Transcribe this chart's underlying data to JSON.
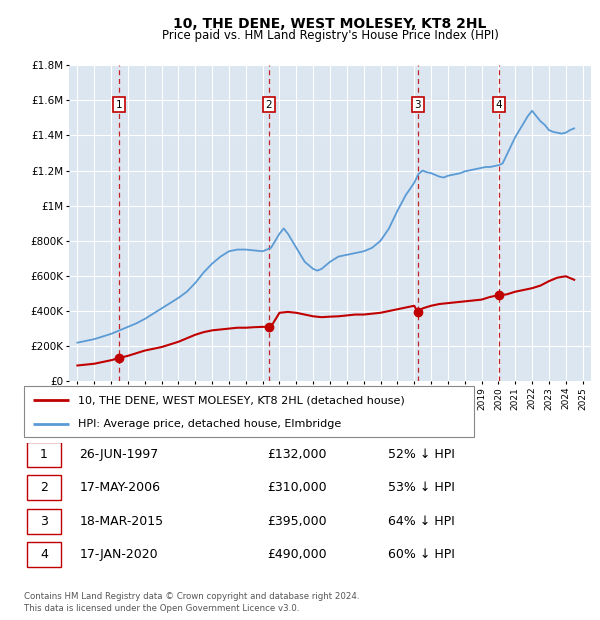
{
  "title": "10, THE DENE, WEST MOLESEY, KT8 2HL",
  "subtitle": "Price paid vs. HM Land Registry's House Price Index (HPI)",
  "legend_line1": "10, THE DENE, WEST MOLESEY, KT8 2HL (detached house)",
  "legend_line2": "HPI: Average price, detached house, Elmbridge",
  "footnote1": "Contains HM Land Registry data © Crown copyright and database right 2024.",
  "footnote2": "This data is licensed under the Open Government Licence v3.0.",
  "sales": [
    {
      "num": 1,
      "date": "26-JUN-1997",
      "price": 132000,
      "pct": "52% ↓ HPI",
      "x_year": 1997.48
    },
    {
      "num": 2,
      "date": "17-MAY-2006",
      "price": 310000,
      "pct": "53% ↓ HPI",
      "x_year": 2006.37
    },
    {
      "num": 3,
      "date": "18-MAR-2015",
      "price": 395000,
      "pct": "64% ↓ HPI",
      "x_year": 2015.21
    },
    {
      "num": 4,
      "date": "17-JAN-2020",
      "price": 490000,
      "pct": "60% ↓ HPI",
      "x_year": 2020.04
    }
  ],
  "hpi_color": "#5b9bd5",
  "price_color": "#c00000",
  "dashed_color": "#c00000",
  "bg_color": "#dce6f1",
  "grid_color": "#ffffff",
  "ylim": [
    0,
    1800000
  ],
  "xlim": [
    1994.5,
    2025.5
  ],
  "yticks": [
    0,
    200000,
    400000,
    600000,
    800000,
    1000000,
    1200000,
    1400000,
    1600000,
    1800000
  ],
  "ytick_labels": [
    "£0",
    "£200K",
    "£400K",
    "£600K",
    "£800K",
    "£1M",
    "£1.2M",
    "£1.4M",
    "£1.6M",
    "£1.8M"
  ],
  "xticks": [
    1995,
    1996,
    1997,
    1998,
    1999,
    2000,
    2001,
    2002,
    2003,
    2004,
    2005,
    2006,
    2007,
    2008,
    2009,
    2010,
    2011,
    2012,
    2013,
    2014,
    2015,
    2016,
    2017,
    2018,
    2019,
    2020,
    2021,
    2022,
    2023,
    2024,
    2025
  ],
  "hpi_x": [
    1995.0,
    1995.5,
    1996.0,
    1996.5,
    1997.0,
    1997.5,
    1998.0,
    1998.5,
    1999.0,
    1999.5,
    2000.0,
    2000.5,
    2001.0,
    2001.5,
    2002.0,
    2002.5,
    2003.0,
    2003.5,
    2004.0,
    2004.5,
    2005.0,
    2005.5,
    2006.0,
    2006.5,
    2007.0,
    2007.25,
    2007.5,
    2007.75,
    2008.0,
    2008.25,
    2008.5,
    2008.75,
    2009.0,
    2009.25,
    2009.5,
    2009.75,
    2010.0,
    2010.5,
    2011.0,
    2011.5,
    2012.0,
    2012.5,
    2013.0,
    2013.5,
    2014.0,
    2014.5,
    2015.0,
    2015.25,
    2015.5,
    2015.75,
    2016.0,
    2016.25,
    2016.5,
    2016.75,
    2017.0,
    2017.25,
    2017.5,
    2017.75,
    2018.0,
    2018.25,
    2018.5,
    2018.75,
    2019.0,
    2019.25,
    2019.5,
    2019.75,
    2020.0,
    2020.25,
    2020.5,
    2020.75,
    2021.0,
    2021.25,
    2021.5,
    2021.75,
    2022.0,
    2022.25,
    2022.5,
    2022.75,
    2023.0,
    2023.25,
    2023.5,
    2023.75,
    2024.0,
    2024.25,
    2024.5
  ],
  "hpi_y": [
    220000,
    230000,
    240000,
    255000,
    270000,
    290000,
    310000,
    330000,
    355000,
    385000,
    415000,
    445000,
    475000,
    510000,
    560000,
    620000,
    670000,
    710000,
    740000,
    750000,
    750000,
    745000,
    740000,
    760000,
    840000,
    870000,
    840000,
    800000,
    760000,
    720000,
    680000,
    660000,
    640000,
    630000,
    640000,
    660000,
    680000,
    710000,
    720000,
    730000,
    740000,
    760000,
    800000,
    870000,
    970000,
    1060000,
    1130000,
    1180000,
    1200000,
    1190000,
    1185000,
    1175000,
    1165000,
    1160000,
    1170000,
    1175000,
    1180000,
    1185000,
    1195000,
    1200000,
    1205000,
    1210000,
    1215000,
    1220000,
    1220000,
    1225000,
    1230000,
    1240000,
    1290000,
    1340000,
    1390000,
    1430000,
    1470000,
    1510000,
    1540000,
    1510000,
    1480000,
    1460000,
    1430000,
    1420000,
    1415000,
    1410000,
    1415000,
    1430000,
    1440000
  ],
  "price_x": [
    1995.0,
    1995.5,
    1996.0,
    1996.5,
    1997.0,
    1997.48,
    1997.5,
    1998.0,
    1998.5,
    1999.0,
    1999.5,
    2000.0,
    2000.5,
    2001.0,
    2001.5,
    2002.0,
    2002.5,
    2003.0,
    2003.5,
    2004.0,
    2004.5,
    2005.0,
    2005.5,
    2006.0,
    2006.37,
    2006.5,
    2007.0,
    2007.5,
    2008.0,
    2008.5,
    2009.0,
    2009.5,
    2010.0,
    2010.5,
    2011.0,
    2011.5,
    2012.0,
    2012.5,
    2013.0,
    2013.5,
    2014.0,
    2014.5,
    2015.0,
    2015.21,
    2015.5,
    2016.0,
    2016.5,
    2017.0,
    2017.5,
    2018.0,
    2018.5,
    2019.0,
    2019.5,
    2020.0,
    2020.04,
    2020.5,
    2021.0,
    2021.5,
    2022.0,
    2022.5,
    2023.0,
    2023.5,
    2024.0,
    2024.5
  ],
  "price_y": [
    90000,
    95000,
    100000,
    110000,
    120000,
    132000,
    133000,
    145000,
    160000,
    175000,
    185000,
    195000,
    210000,
    225000,
    245000,
    265000,
    280000,
    290000,
    295000,
    300000,
    305000,
    305000,
    308000,
    310000,
    310000,
    312000,
    390000,
    395000,
    390000,
    380000,
    370000,
    365000,
    368000,
    370000,
    375000,
    380000,
    380000,
    385000,
    390000,
    400000,
    410000,
    420000,
    430000,
    395000,
    415000,
    430000,
    440000,
    445000,
    450000,
    455000,
    460000,
    465000,
    480000,
    490000,
    490000,
    495000,
    510000,
    520000,
    530000,
    545000,
    570000,
    590000,
    598000,
    578000
  ]
}
